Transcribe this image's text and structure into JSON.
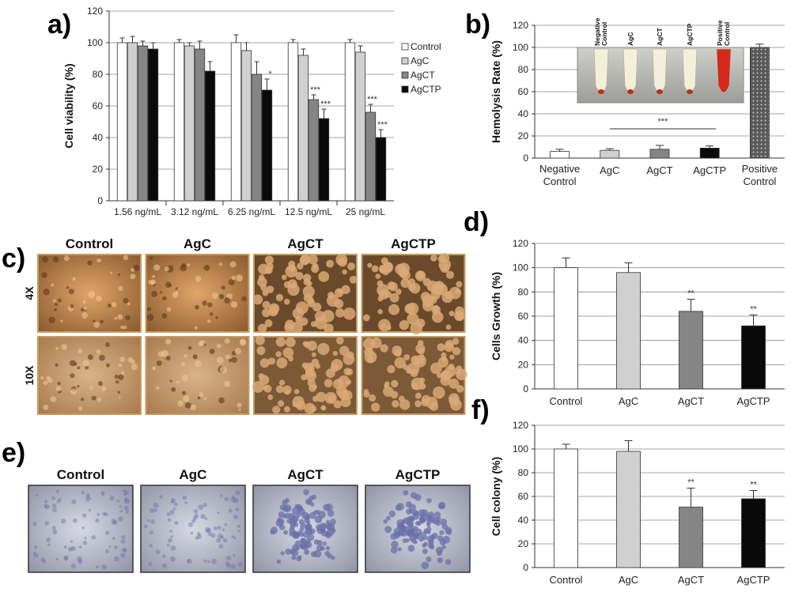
{
  "panel_labels": {
    "a": "a)",
    "b": "b)",
    "c": "c)",
    "d": "d)",
    "e": "e)",
    "f": "f)"
  },
  "colors": {
    "Control": "#ffffff",
    "AgC": "#d0d0d0",
    "AgCT": "#858585",
    "AgCTP": "#0a0a0a",
    "positive": "#555555"
  },
  "panel_b_inset": {
    "tube_labels": [
      "Negative Control",
      "AgC",
      "AgCT",
      "AgCTP",
      "Positive Control"
    ]
  },
  "panel_c": {
    "columns": [
      "Control",
      "AgC",
      "AgCT",
      "AgCTP"
    ],
    "rows": [
      "4X",
      "10X"
    ]
  },
  "panel_e": {
    "columns": [
      "Control",
      "AgC",
      "AgCT",
      "AgCTP"
    ]
  },
  "chart_data": [
    {
      "id": "a",
      "type": "bar",
      "title": "",
      "ylabel": "Cell viability (%)",
      "xlabel": "",
      "ylim": [
        0,
        120
      ],
      "yticks": [
        0,
        20,
        40,
        60,
        80,
        100,
        120
      ],
      "grid": true,
      "legend": "right",
      "categories": [
        "1.56 ng/mL",
        "3.12  ng/mL",
        "6.25 ng/mL",
        "12.5 ng/mL",
        "25 ng/mL"
      ],
      "series": [
        {
          "name": "Control",
          "values": [
            100,
            100,
            100,
            100,
            100
          ],
          "errors": [
            3,
            2,
            5,
            2,
            2
          ]
        },
        {
          "name": "AgC",
          "values": [
            100,
            98,
            95,
            92,
            94
          ],
          "errors": [
            4,
            2,
            5,
            4,
            4
          ]
        },
        {
          "name": "AgCT",
          "values": [
            98,
            96,
            80,
            64,
            56
          ],
          "errors": [
            3,
            5,
            8,
            3,
            5
          ]
        },
        {
          "name": "AgCTP",
          "values": [
            96,
            82,
            70,
            52,
            40
          ],
          "errors": [
            4,
            6,
            7,
            6,
            5
          ]
        }
      ],
      "annotations": [
        {
          "category": 2,
          "series": 3,
          "text": "*"
        },
        {
          "category": 3,
          "series": 2,
          "text": "***"
        },
        {
          "category": 3,
          "series": 3,
          "text": "***"
        },
        {
          "category": 4,
          "series": 2,
          "text": "***"
        },
        {
          "category": 4,
          "series": 3,
          "text": "***"
        }
      ]
    },
    {
      "id": "b",
      "type": "bar",
      "title": "",
      "ylabel": "Hemolysis Rate (%)",
      "xlabel": "",
      "ylim": [
        0,
        120
      ],
      "yticks": [
        0,
        20,
        40,
        60,
        80,
        100,
        120
      ],
      "grid": true,
      "categories": [
        "Negative Control",
        "AgC",
        "AgCT",
        "AgCTP",
        "Positive Control"
      ],
      "values": [
        6,
        7,
        8,
        9,
        100
      ],
      "errors": [
        2,
        1.5,
        3.5,
        2,
        3
      ],
      "bar_colors": [
        "#ffffff",
        "#d0d0d0",
        "#858585",
        "#0a0a0a",
        "#555555"
      ],
      "annotations": [
        {
          "text": "***",
          "span": [
            1,
            3
          ]
        }
      ]
    },
    {
      "id": "d",
      "type": "bar",
      "title": "",
      "ylabel": "Cells Growth (%)",
      "xlabel": "",
      "ylim": [
        0,
        120
      ],
      "yticks": [
        0,
        20,
        40,
        60,
        80,
        100,
        120
      ],
      "grid": true,
      "categories": [
        "Control",
        "AgC",
        "AgCT",
        "AgCTP"
      ],
      "values": [
        100,
        96,
        64,
        52
      ],
      "errors": [
        8,
        8,
        10,
        9
      ],
      "bar_colors": [
        "#ffffff",
        "#d0d0d0",
        "#858585",
        "#0a0a0a"
      ],
      "annotations": [
        {
          "category": 2,
          "text": "**"
        },
        {
          "category": 3,
          "text": "**"
        }
      ]
    },
    {
      "id": "f",
      "type": "bar",
      "title": "",
      "ylabel": "Cell colony (%)",
      "xlabel": "",
      "ylim": [
        0,
        120
      ],
      "yticks": [
        0,
        20,
        40,
        60,
        80,
        100,
        120
      ],
      "grid": true,
      "categories": [
        "Control",
        "AgC",
        "AgCT",
        "AgCTP"
      ],
      "values": [
        100,
        98,
        51,
        58
      ],
      "errors": [
        4,
        9,
        16,
        7
      ],
      "bar_colors": [
        "#ffffff",
        "#d0d0d0",
        "#858585",
        "#0a0a0a"
      ],
      "annotations": [
        {
          "category": 2,
          "text": "**"
        },
        {
          "category": 3,
          "text": "**"
        }
      ]
    }
  ]
}
